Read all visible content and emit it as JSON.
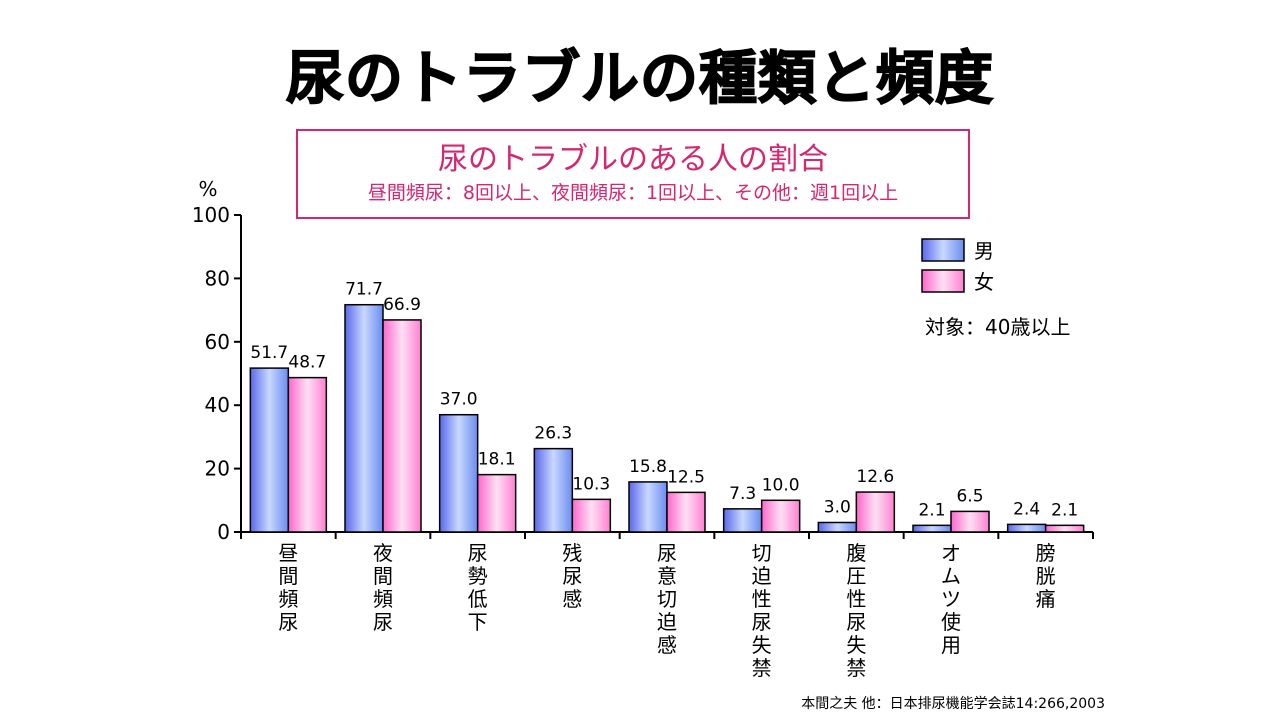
{
  "title": "尿のトラブルの種類と頻度",
  "subtitle": {
    "main": "尿のトラブルのある人の割合",
    "note": "昼間頻尿：8回以上、夜間頻尿：1回以上、その他：週1回以上"
  },
  "source": "本間之夫 他：日本排尿機能学会誌14:266,2003",
  "colors": {
    "male": "#5a68ea",
    "female": "#ff66cc",
    "accent": "#d6266f"
  },
  "chart_data": {
    "type": "bar",
    "title": "尿のトラブルのある人の割合",
    "ylabel": "%",
    "ylim": [
      0,
      100
    ],
    "yticks": [
      0,
      20,
      40,
      60,
      80,
      100
    ],
    "categories": [
      "昼間頻尿",
      "夜間頻尿",
      "尿勢低下",
      "残尿感",
      "尿意切迫感",
      "切迫性尿失禁",
      "腹圧性尿失禁",
      "オムツ使用",
      "膀胱痛"
    ],
    "series": [
      {
        "name": "男",
        "values": [
          51.7,
          71.7,
          37.0,
          26.3,
          15.8,
          7.3,
          3.0,
          2.1,
          2.4
        ],
        "labels": [
          "51.7",
          "71.7",
          "37.0",
          "26.3",
          "15.8",
          "7.3",
          "3.0",
          "2.1",
          "2.4"
        ]
      },
      {
        "name": "女",
        "values": [
          48.7,
          66.9,
          18.1,
          10.3,
          12.5,
          10.0,
          12.6,
          6.5,
          2.1
        ],
        "labels": [
          "48.7",
          "66.9",
          "18.1",
          "10.3",
          "12.5",
          "10.0",
          "12.6",
          "6.5",
          "2.1"
        ]
      }
    ],
    "legend_position": "top-right",
    "annotation": "対象：40歳以上",
    "grid": false
  }
}
